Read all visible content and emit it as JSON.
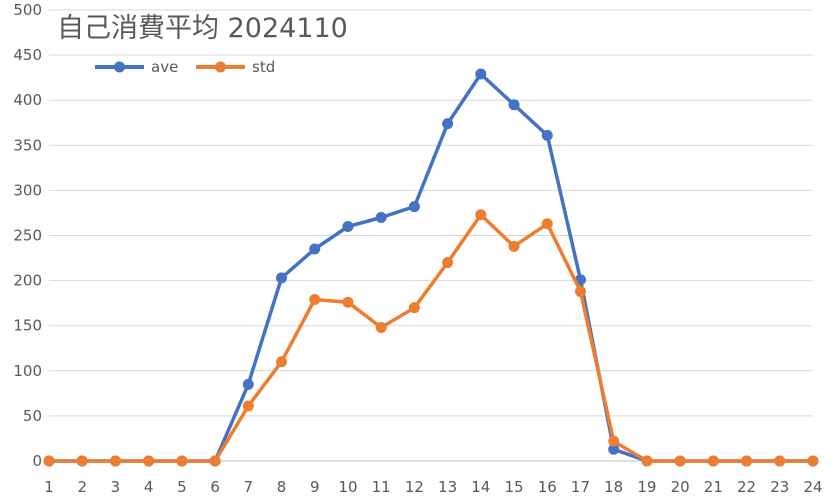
{
  "chart_data": {
    "type": "line",
    "title": "自己消費平均  2024110",
    "xlabel": "",
    "ylabel": "",
    "categories": [
      "1",
      "2",
      "3",
      "4",
      "5",
      "6",
      "7",
      "8",
      "9",
      "10",
      "11",
      "12",
      "13",
      "14",
      "15",
      "16",
      "17",
      "18",
      "19",
      "20",
      "21",
      "22",
      "23",
      "24"
    ],
    "ylim": [
      0,
      500
    ],
    "yticks": [
      0,
      50,
      100,
      150,
      200,
      250,
      300,
      350,
      400,
      450,
      500
    ],
    "grid": true,
    "legend_position": "top-left",
    "series": [
      {
        "name": "ave",
        "color": "#4472c4",
        "values": [
          0,
          0,
          0,
          0,
          0,
          0,
          85,
          203,
          235,
          260,
          270,
          282,
          374,
          429,
          395,
          361,
          201,
          13,
          0,
          0,
          0,
          0,
          0,
          0
        ]
      },
      {
        "name": "std",
        "color": "#ed7d31",
        "values": [
          0,
          0,
          0,
          0,
          0,
          0,
          61,
          110,
          179,
          176,
          148,
          170,
          220,
          273,
          238,
          263,
          188,
          22,
          0,
          0,
          0,
          0,
          0,
          0
        ]
      }
    ]
  }
}
